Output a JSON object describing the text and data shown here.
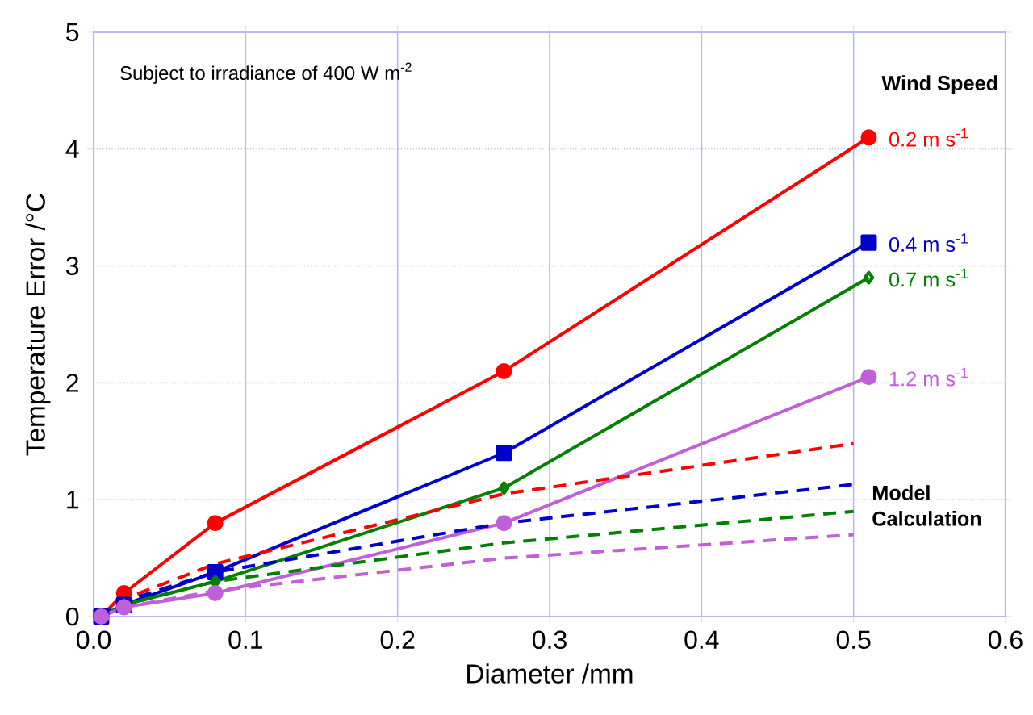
{
  "chart_data": {
    "type": "line",
    "xlabel": "Diameter /mm",
    "ylabel": "Temperature Error /°C",
    "legend_title": "Wind Speed",
    "annotations": [
      "Subject to irradiance of 400 W m$^{-2}$",
      "Model Calculation"
    ],
    "series": [
      {
        "name": "0.2 m s$^{-1}$",
        "color": "#ff0000",
        "marker": "circle",
        "line_style": "solid",
        "x": [
          0.005,
          0.02,
          0.08,
          0.27,
          0.51
        ],
        "values": [
          0,
          0.2,
          0.8,
          2.1,
          4.1
        ]
      },
      {
        "name": "0.4 m s$^{-1}$",
        "color": "#0000cc",
        "marker": "square",
        "line_style": "solid",
        "x": [
          0.005,
          0.02,
          0.08,
          0.27,
          0.51
        ],
        "values": [
          0,
          0.1,
          0.38,
          1.4,
          3.2
        ]
      },
      {
        "name": "0.7 m s$^{-1}$",
        "color": "#008000",
        "marker": "diamond",
        "line_style": "solid",
        "x": [
          0.005,
          0.02,
          0.08,
          0.27,
          0.51
        ],
        "values": [
          0,
          0.1,
          0.3,
          1.1,
          2.9
        ]
      },
      {
        "name": "1.2 m s$^{-1}$",
        "color": "#c060d8",
        "marker": "circle",
        "line_style": "solid",
        "x": [
          0.005,
          0.02,
          0.08,
          0.27,
          0.51
        ],
        "values": [
          0,
          0.08,
          0.2,
          0.8,
          2.05
        ]
      },
      {
        "color": "#ff0000",
        "marker": "none",
        "line_style": "dashed",
        "x": [
          0.005,
          0.02,
          0.08,
          0.27,
          0.5
        ],
        "values": [
          0,
          0.15,
          0.45,
          1.05,
          1.48
        ]
      },
      {
        "color": "#0000cc",
        "marker": "none",
        "line_style": "dashed",
        "x": [
          0.005,
          0.02,
          0.08,
          0.27,
          0.5
        ],
        "values": [
          0,
          0.13,
          0.38,
          0.8,
          1.13
        ]
      },
      {
        "color": "#008000",
        "marker": "none",
        "line_style": "dashed",
        "x": [
          0.005,
          0.02,
          0.08,
          0.27,
          0.5
        ],
        "values": [
          0,
          0.1,
          0.3,
          0.63,
          0.9
        ]
      },
      {
        "color": "#c060d8",
        "marker": "none",
        "line_style": "dashed",
        "x": [
          0.005,
          0.02,
          0.08,
          0.27,
          0.5
        ],
        "values": [
          0,
          0.08,
          0.22,
          0.5,
          0.7
        ]
      }
    ],
    "xlim": [
      0,
      0.6
    ],
    "ylim": [
      0,
      5
    ],
    "xticks": [
      {
        "value": 0,
        "label": "0.0"
      },
      0.1,
      0.2,
      0.3,
      0.4,
      0.5,
      0.6
    ],
    "yticks": [
      0,
      1,
      2,
      3,
      4,
      5
    ],
    "grid": true
  }
}
